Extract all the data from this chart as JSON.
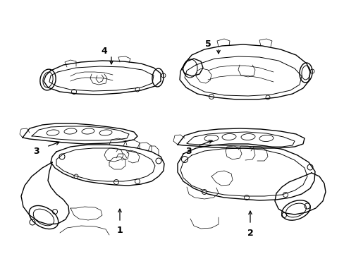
{
  "background_color": "#ffffff",
  "line_color": "#000000",
  "fig_width": 4.89,
  "fig_height": 3.6,
  "dpi": 100,
  "components": {
    "layout": "4 groups: top-left=item4(heat shield cover left), bottom-left=item3L+item1(gasket+manifold left), top-right=item5+item3R(heat shield cover right + gasket right), bottom-right=item2(manifold right)"
  }
}
